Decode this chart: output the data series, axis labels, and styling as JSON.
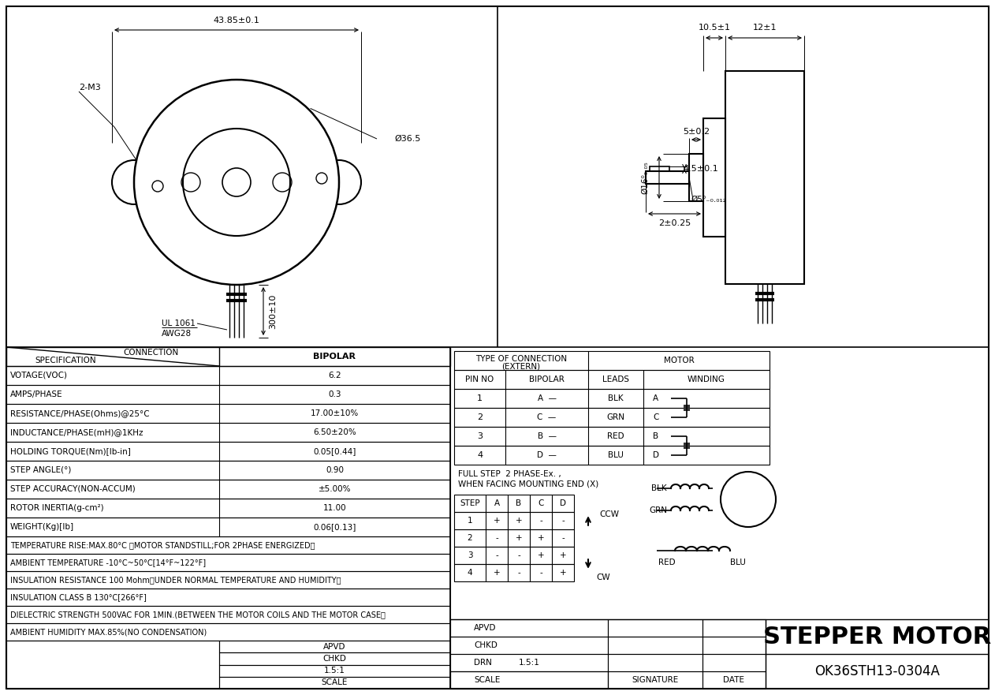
{
  "bg_color": "#ffffff",
  "line_color": "#000000",
  "title": "STEPPER MOTOR",
  "part_number": "OK36STH13-0304A",
  "spec_rows": [
    [
      "VOTAGE(VOC)",
      "6.2"
    ],
    [
      "AMPS/PHASE",
      "0.3"
    ],
    [
      "RESISTANCE/PHASE(Ohms)@25°C",
      "17.00±10%"
    ],
    [
      "INDUCTANCE/PHASE(mH)@1KHz",
      "6.50±20%"
    ],
    [
      "HOLDING TORQUE(Nm)[lb-in]",
      "0.05[0.44]"
    ],
    [
      "STEP ANGLE(°)",
      "0.90"
    ],
    [
      "STEP ACCURACY(NON-ACCUM)",
      "±5.00%"
    ],
    [
      "ROTOR INERTIA(g-cm²)",
      "11.00"
    ],
    [
      "WEIGHT(Kg)[lb]",
      "0.06[0.13]"
    ]
  ],
  "full_rows": [
    "TEMPERATURE RISE:MAX.80°C （MOTOR STANDSTILL;FOR 2PHASE ENERGIZED）",
    "AMBIENT TEMPERATURE -10°C~50°C[14°F~122°F]",
    "INSULATION RESISTANCE 100 Mohm（UNDER NORMAL TEMPERATURE AND HUMIDITY）",
    "INSULATION CLASS B 130°C[266°F]",
    "DIELECTRIC STRENGTH 500VAC FOR 1MIN.(BETWEEN THE MOTOR COILS AND THE MOTOR CASE）",
    "AMBIENT HUMIDITY MAX.85%(NO CONDENSATION)"
  ],
  "pin_data": [
    [
      "1",
      "A  —",
      "BLK",
      "A"
    ],
    [
      "2",
      "C  —",
      "GRN",
      "C"
    ],
    [
      "3",
      "B  —",
      "RED",
      "B"
    ],
    [
      "4",
      "D  —",
      "BLU",
      "D"
    ]
  ],
  "step_headers": [
    "STEP",
    "A",
    "B",
    "C",
    "D"
  ],
  "step_rows": [
    [
      "1",
      "+",
      "+",
      "-",
      "-"
    ],
    [
      "2",
      "-",
      "+",
      "+",
      "-"
    ],
    [
      "3",
      "-",
      "-",
      "+",
      "+"
    ],
    [
      "4",
      "+",
      "-",
      "-",
      "+"
    ]
  ]
}
